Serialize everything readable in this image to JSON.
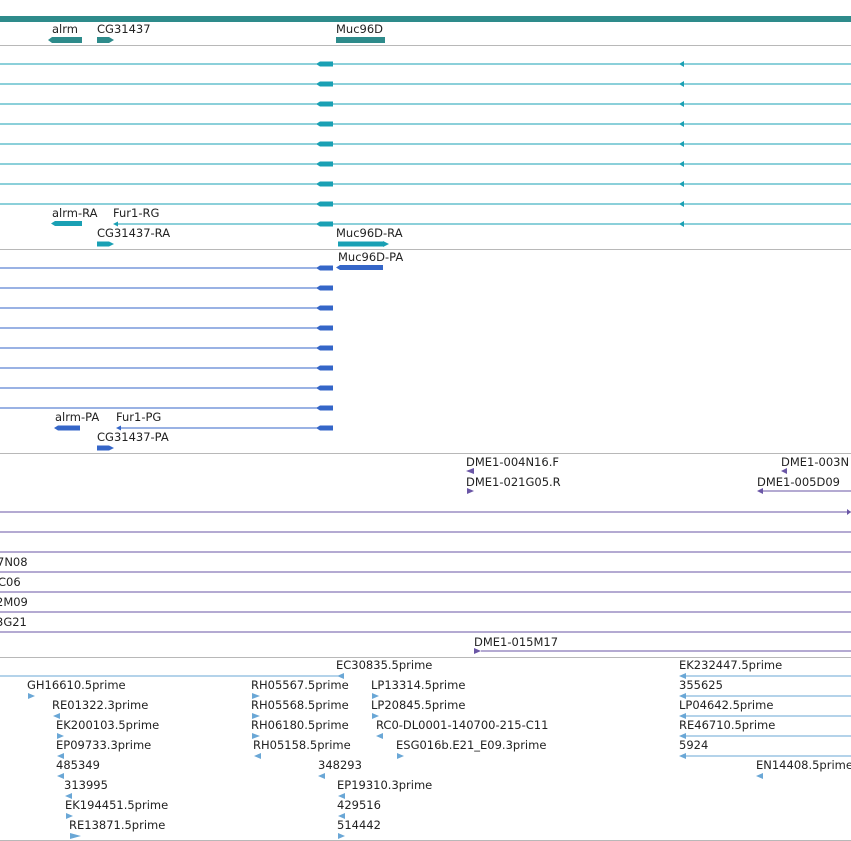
{
  "colors": {
    "gene": "#2e8b8b",
    "transcript": "#1aa0b4",
    "protein": "#3566c8",
    "clone": "#6a56a6",
    "est": "#6aa7d6",
    "divider": "#b8b8b8"
  },
  "tracks": {
    "genes": {
      "labels": [
        {
          "text": "alrm"
        },
        {
          "text": "CG31437"
        },
        {
          "text": "Muc96D"
        }
      ]
    },
    "transcripts": {
      "labels": [
        {
          "text": "alrm-RA"
        },
        {
          "text": "Fur1-RG"
        },
        {
          "text": "CG31437-RA"
        },
        {
          "text": "Muc96D-RA"
        }
      ]
    },
    "proteins": {
      "labels": [
        {
          "text": "Muc96D-PA"
        },
        {
          "text": "alrm-PA"
        },
        {
          "text": "Fur1-PG"
        },
        {
          "text": "CG31437-PA"
        }
      ]
    },
    "clones": {
      "labels": [
        {
          "text": "DME1-004N16.F"
        },
        {
          "text": "DME1-003N"
        },
        {
          "text": "DME1-021G05.R"
        },
        {
          "text": "DME1-005D09"
        },
        {
          "text": "7N08"
        },
        {
          "text": "C06"
        },
        {
          "text": "2M09"
        },
        {
          "text": "3G21"
        },
        {
          "text": "DME1-015M17"
        }
      ]
    },
    "ests": {
      "labels": [
        {
          "text": "EC30835.5prime"
        },
        {
          "text": "EK232447.5prime"
        },
        {
          "text": "GH16610.5prime"
        },
        {
          "text": "RH05567.5prime"
        },
        {
          "text": "LP13314.5prime"
        },
        {
          "text": "355625"
        },
        {
          "text": "RE01322.3prime"
        },
        {
          "text": "RH05568.5prime"
        },
        {
          "text": "LP20845.5prime"
        },
        {
          "text": "LP04642.5prime"
        },
        {
          "text": "EK200103.5prime"
        },
        {
          "text": "RH06180.5prime"
        },
        {
          "text": "RC0-DL0001-140700-215-C11"
        },
        {
          "text": "RE46710.5prime"
        },
        {
          "text": "EP09733.3prime"
        },
        {
          "text": "RH05158.5prime"
        },
        {
          "text": "ESG016b.E21_E09.3prime"
        },
        {
          "text": "5924"
        },
        {
          "text": "485349"
        },
        {
          "text": "348293"
        },
        {
          "text": "EN14408.5prime"
        },
        {
          "text": "313995"
        },
        {
          "text": "EP19310.3prime"
        },
        {
          "text": "EK194451.5prime"
        },
        {
          "text": "429516"
        },
        {
          "text": "RE13871.5prime"
        },
        {
          "text": "514442"
        }
      ]
    }
  }
}
